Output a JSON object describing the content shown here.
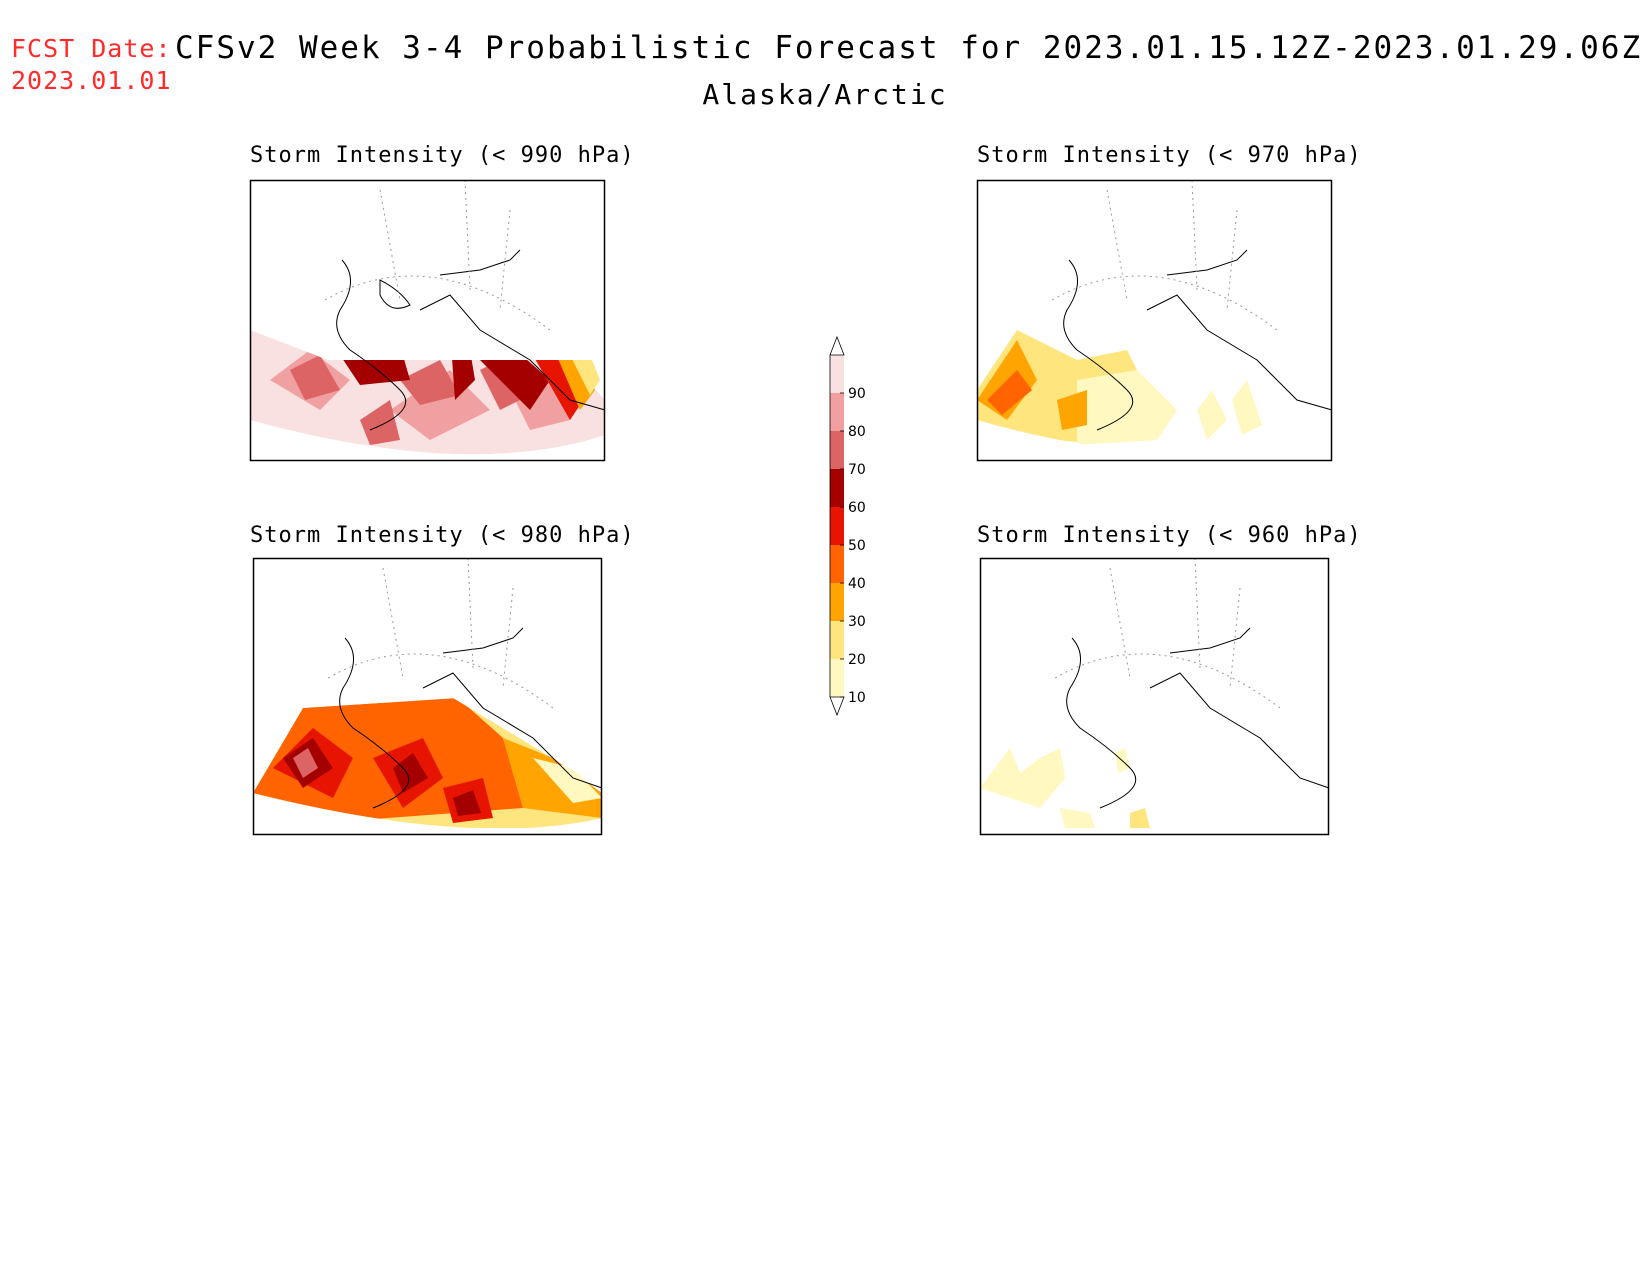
{
  "header": {
    "fcst_label": "FCST Date:",
    "fcst_date": "2023.01.01",
    "title": "CFSv2 Week 3-4 Probabilistic Forecast for 2023.01.15.12Z-2023.01.29.06Z",
    "region": "Alaska/Arctic",
    "label_color": "#ff2a2a"
  },
  "panels": [
    {
      "id": "p990",
      "title": "Storm Intensity (< 990 hPa)"
    },
    {
      "id": "p970",
      "title": "Storm Intensity (< 970 hPa)"
    },
    {
      "id": "p980",
      "title": "Storm Intensity (< 980 hPa)"
    },
    {
      "id": "p960",
      "title": "Storm Intensity (< 960 hPa)"
    }
  ],
  "colorbar": {
    "ticks": [
      "90",
      "80",
      "70",
      "60",
      "50",
      "40",
      "30",
      "20",
      "10"
    ],
    "colors": [
      "#fff8c0",
      "#ffe57e",
      "#ffa400",
      "#ff6400",
      "#e61400",
      "#a50000",
      "#dc6464",
      "#f0a0a0",
      "#fae1e1"
    ]
  }
}
